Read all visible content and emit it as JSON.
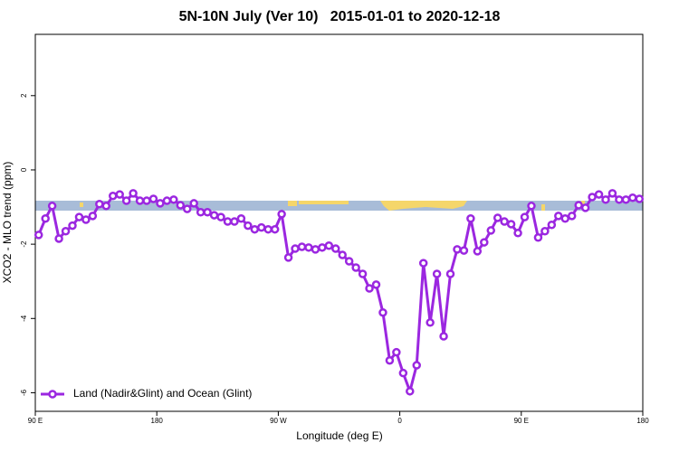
{
  "chart_data": {
    "type": "line",
    "title": "5N-10N July (Ver 10)   2015-01-01 to 2020-12-18",
    "x_label": "Longitude (deg E)",
    "y_label": "XCO2 - MLO trend (ppm)",
    "xlim": [
      90,
      540
    ],
    "ylim": [
      -6.5,
      3.65
    ],
    "xticks": [
      {
        "value": 90,
        "label": "90 E"
      },
      180,
      {
        "value": 270,
        "label": "90 W"
      },
      {
        "value": 360,
        "label": "0"
      },
      {
        "value": 450,
        "label": "90 E"
      },
      {
        "value": 540,
        "label": "180"
      }
    ],
    "yticks": [
      -6,
      -4,
      -2,
      0,
      2
    ],
    "legend": "bottom-left",
    "grid": false,
    "x": [
      92.5,
      97.5,
      102.5,
      107.5,
      112.5,
      117.5,
      122.5,
      127.5,
      132.5,
      137.5,
      142.5,
      147.5,
      152.5,
      157.5,
      162.5,
      167.5,
      172.5,
      177.5,
      182.5,
      187.5,
      192.5,
      197.5,
      202.5,
      207.5,
      212.5,
      217.5,
      222.5,
      227.5,
      232.5,
      237.5,
      242.5,
      247.5,
      252.5,
      257.5,
      262.5,
      267.5,
      272.5,
      277.5,
      282.5,
      287.5,
      292.5,
      297.5,
      302.5,
      307.5,
      312.5,
      317.5,
      322.5,
      327.5,
      332.5,
      337.5,
      342.5,
      347.5,
      352.5,
      357.5,
      362.5,
      367.5,
      372.5,
      377.5,
      382.5,
      387.5,
      392.5,
      397.5,
      402.5,
      407.5,
      412.5,
      417.5,
      422.5,
      427.5,
      432.5,
      437.5,
      442.5,
      447.5,
      452.5,
      457.5,
      462.5,
      467.5,
      472.5,
      477.5,
      482.5,
      487.5,
      492.5,
      497.5,
      502.5,
      507.5,
      512.5,
      517.5,
      522.5,
      527.5,
      532.5,
      537.5
    ],
    "series": [
      {
        "name": "Land (Nadir&Glint) and Ocean (Glint)",
        "color": "#9b27e0",
        "values": [
          -1.75,
          -1.31,
          -0.97,
          -1.85,
          -1.65,
          -1.5,
          -1.27,
          -1.34,
          -1.24,
          -0.92,
          -0.97,
          -0.7,
          -0.66,
          -0.83,
          -0.63,
          -0.83,
          -0.83,
          -0.78,
          -0.9,
          -0.83,
          -0.8,
          -0.95,
          -1.05,
          -0.9,
          -1.14,
          -1.14,
          -1.22,
          -1.27,
          -1.39,
          -1.39,
          -1.31,
          -1.5,
          -1.6,
          -1.55,
          -1.6,
          -1.6,
          -1.19,
          -2.36,
          -2.12,
          -2.07,
          -2.09,
          -2.14,
          -2.09,
          -2.04,
          -2.12,
          -2.29,
          -2.46,
          -2.63,
          -2.8,
          -3.19,
          -3.09,
          -3.84,
          -5.13,
          -4.91,
          -5.47,
          -5.96,
          -5.26,
          -2.51,
          -4.11,
          -2.8,
          -4.48,
          -2.8,
          -2.14,
          -2.17,
          -1.31,
          -2.19,
          -1.95,
          -1.63,
          -1.29,
          -1.39,
          -1.46,
          -1.7,
          -1.27,
          -0.97,
          -1.82,
          -1.65,
          -1.48,
          -1.24,
          -1.31,
          -1.24,
          -0.95,
          -1.02,
          -0.73,
          -0.66,
          -0.8,
          -0.63,
          -0.8,
          -0.8,
          -0.75,
          -0.78
        ]
      }
    ]
  }
}
